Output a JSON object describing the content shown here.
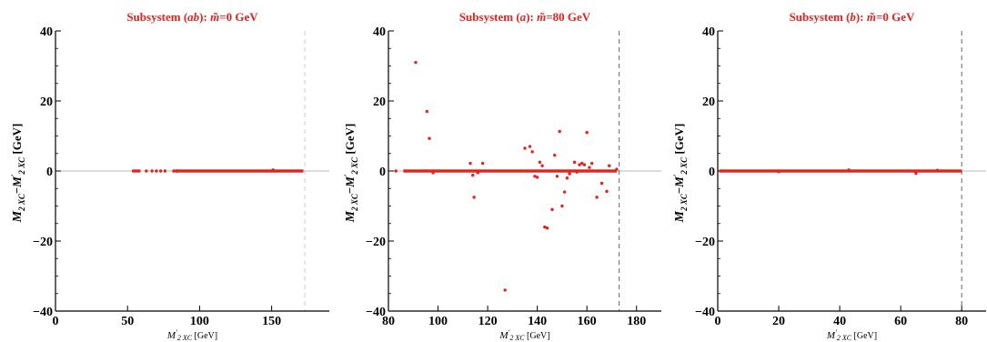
{
  "chart_data": [
    {
      "type": "scatter",
      "title": "Subsystem (ab): m̃=0 GeV",
      "xlabel": "M′2 XC [GeV]",
      "ylabel": "M2 XC−M′2 XC [GeV]",
      "xlim": [
        0,
        190
      ],
      "ylim": [
        -40,
        40
      ],
      "xticks": [
        0,
        50,
        100,
        150
      ],
      "yticks": [
        -40,
        -20,
        0,
        20,
        40
      ],
      "endpoint_x": 173,
      "endpoint_color": "#cccccc",
      "zero_line": true,
      "point_color": "#e8211c",
      "bands": [
        {
          "x_from": 83,
          "x_to": 172,
          "y": 0
        }
      ],
      "points": [
        [
          54,
          0
        ],
        [
          55.5,
          0
        ],
        [
          57,
          0
        ],
        [
          58,
          0
        ],
        [
          63,
          0
        ],
        [
          67,
          0
        ],
        [
          70,
          0
        ],
        [
          73,
          0
        ],
        [
          76,
          0
        ],
        [
          82,
          0
        ],
        [
          84,
          0
        ],
        [
          151,
          0.3
        ]
      ]
    },
    {
      "type": "scatter",
      "title": "Subsystem (a): m̃=80 GeV",
      "xlabel": "M′2 XC [GeV]",
      "ylabel": "M2 XC−M′2 XC [GeV]",
      "xlim": [
        80,
        190
      ],
      "ylim": [
        -40,
        40
      ],
      "xticks": [
        80,
        100,
        120,
        140,
        160,
        180
      ],
      "yticks": [
        -40,
        -20,
        0,
        20,
        40
      ],
      "endpoint_x": 173,
      "endpoint_color": "#666666",
      "zero_line": true,
      "point_color": "#e8211c",
      "bands": [
        {
          "x_from": 86,
          "x_to": 172,
          "y": 0
        }
      ],
      "points": [
        [
          83,
          0
        ],
        [
          91,
          31
        ],
        [
          95.5,
          17
        ],
        [
          96.5,
          9.3
        ],
        [
          98,
          -0.5
        ],
        [
          113,
          2.2
        ],
        [
          114,
          -1.2
        ],
        [
          114.5,
          -7.5
        ],
        [
          116,
          -0.5
        ],
        [
          118,
          2.2
        ],
        [
          127,
          -34
        ],
        [
          135,
          6.5
        ],
        [
          137,
          7
        ],
        [
          138,
          5.5
        ],
        [
          139,
          -1.5
        ],
        [
          140,
          -1.8
        ],
        [
          141,
          2.5
        ],
        [
          142,
          1.5
        ],
        [
          143,
          -16
        ],
        [
          144,
          -16.3
        ],
        [
          146,
          -11
        ],
        [
          147,
          4.5
        ],
        [
          148,
          -1.5
        ],
        [
          149,
          11.3
        ],
        [
          150,
          -10
        ],
        [
          151,
          -6
        ],
        [
          152,
          -2
        ],
        [
          153,
          -0.8
        ],
        [
          155,
          2.5
        ],
        [
          156,
          -0.3
        ],
        [
          157,
          1.8
        ],
        [
          158,
          2.2
        ],
        [
          159,
          1.8
        ],
        [
          160,
          11
        ],
        [
          161,
          1
        ],
        [
          162,
          2.2
        ],
        [
          164,
          -7.5
        ],
        [
          166,
          -3.5
        ],
        [
          168,
          -5.8
        ],
        [
          169,
          1.5
        ],
        [
          172,
          0.5
        ]
      ]
    },
    {
      "type": "scatter",
      "title": "Subsystem (b): m̃=0 GeV",
      "xlabel": "M′2 XC [GeV]",
      "ylabel": "M2 XC−M′2 XC [GeV]",
      "xlim": [
        0,
        88
      ],
      "ylim": [
        -40,
        40
      ],
      "xticks": [
        0,
        20,
        40,
        60,
        80
      ],
      "yticks": [
        -40,
        -20,
        0,
        20,
        40
      ],
      "endpoint_x": 80,
      "endpoint_color": "#666666",
      "zero_line": true,
      "point_color": "#e8211c",
      "bands": [
        {
          "x_from": 0.5,
          "x_to": 80,
          "y": 0
        }
      ],
      "points": [
        [
          65,
          -0.7
        ],
        [
          43,
          0.3
        ],
        [
          20,
          -0.2
        ],
        [
          72,
          0.2
        ]
      ]
    }
  ]
}
